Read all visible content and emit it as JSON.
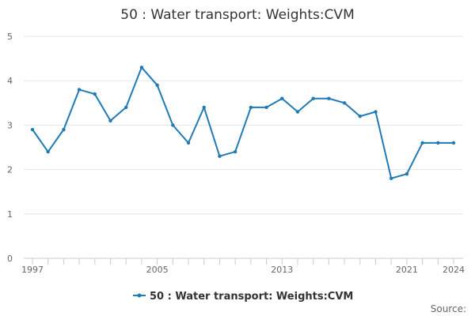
{
  "chart_data": {
    "type": "line",
    "title": "50 : Water transport: Weights:CVM",
    "xlabel": "",
    "ylabel": "",
    "x": [
      1997,
      1998,
      1999,
      2000,
      2001,
      2002,
      2003,
      2004,
      2005,
      2006,
      2007,
      2008,
      2009,
      2010,
      2011,
      2012,
      2013,
      2014,
      2015,
      2016,
      2017,
      2018,
      2019,
      2020,
      2021,
      2022,
      2023,
      2024
    ],
    "series": [
      {
        "name": "50 : Water transport: Weights:CVM",
        "color": "#1f7ab5",
        "values": [
          2.9,
          2.4,
          2.9,
          3.8,
          3.7,
          3.1,
          3.4,
          4.3,
          3.9,
          3.0,
          2.6,
          3.4,
          2.3,
          2.4,
          3.4,
          3.4,
          3.6,
          3.3,
          3.6,
          3.6,
          3.5,
          3.2,
          3.3,
          1.8,
          1.9,
          2.6,
          2.6,
          2.6
        ]
      }
    ],
    "xlim": [
      1997,
      2024
    ],
    "ylim": [
      0,
      5
    ],
    "yticks": [
      0,
      1,
      2,
      3,
      4,
      5
    ],
    "xtick_labels": [
      1997,
      2005,
      2013,
      2021,
      2024
    ],
    "grid": true,
    "legend_position": "bottom-center"
  },
  "source_label": "Source:"
}
